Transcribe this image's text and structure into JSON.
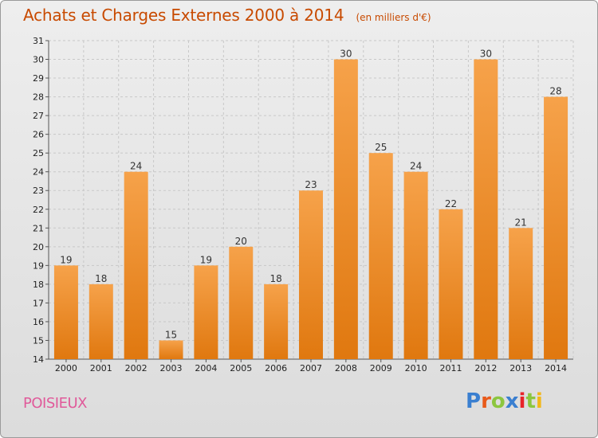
{
  "header": {
    "title": "Achats et Charges Externes 2000 à 2014",
    "unit": "(en milliers d'€)"
  },
  "footer": {
    "place": "POISIEUX",
    "logo_text": "Proxiti",
    "logo_colors": [
      "#3a7fd0",
      "#e85a1a",
      "#8cc63f",
      "#3a7fd0",
      "#e8242a",
      "#8cc63f",
      "#f2b71a"
    ]
  },
  "colors": {
    "bar_light": "#f6a24a",
    "bar_dark": "#e0780f",
    "grid": "#c8c8c8",
    "title": "#c84a00",
    "place": "#e05a9a"
  },
  "chart_data": {
    "type": "bar",
    "title": "Achats et Charges Externes 2000 à 2014",
    "subtitle": "(en milliers d'€)",
    "xlabel": "",
    "ylabel": "",
    "categories": [
      "2000",
      "2001",
      "2002",
      "2003",
      "2004",
      "2005",
      "2006",
      "2007",
      "2008",
      "2009",
      "2010",
      "2011",
      "2012",
      "2013",
      "2014"
    ],
    "values": [
      19,
      18,
      24,
      15,
      19,
      20,
      18,
      23,
      30,
      25,
      24,
      22,
      30,
      21,
      28
    ],
    "ylim": [
      14,
      31
    ],
    "yticks": [
      14,
      15,
      16,
      17,
      18,
      19,
      20,
      21,
      22,
      23,
      24,
      25,
      26,
      27,
      28,
      29,
      30,
      31
    ],
    "grid": true,
    "data_labels": true
  }
}
